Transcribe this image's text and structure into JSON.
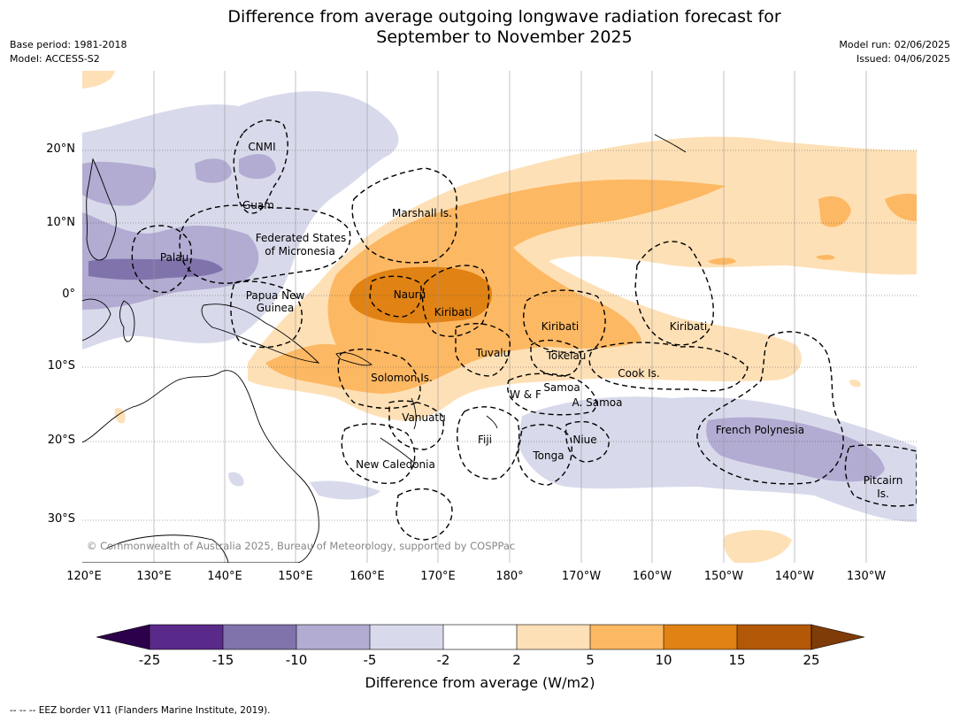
{
  "title_line1": "Difference from average outgoing longwave radiation forecast for",
  "title_line2": "September to November 2025",
  "base_period": "Base period: 1981-2018",
  "model": "Model: ACCESS-S2",
  "model_run": "Model run: 02/06/2025",
  "issued": "Issued: 04/06/2025",
  "copyright": "© Commonwealth of Australia 2025, Bureau of Meteorology, supported by COSPPac",
  "lon_labels": [
    "120°E",
    "130°E",
    "140°E",
    "150°E",
    "160°E",
    "170°E",
    "180°",
    "170°W",
    "160°W",
    "150°W",
    "140°W",
    "130°W"
  ],
  "lat_labels": [
    "20°N",
    "10°N",
    "0°",
    "10°S",
    "20°S",
    "30°S"
  ],
  "region_labels": {
    "cnmi": "CNMI",
    "guam": "Guam",
    "marshall": "Marshall Is.",
    "fsm1": "Federated States",
    "fsm2": "of Micronesia",
    "palau": "Palau",
    "png1": "Papua New",
    "png2": "Guinea",
    "nauru": "Nauru",
    "kiribati_w": "Kiribati",
    "kiribati_c": "Kiribati",
    "kiribati_e": "Kiribati",
    "tuvalu": "Tuvalu",
    "tokelau": "Tokelau",
    "cook": "Cook Is.",
    "solomon": "Solomon Is.",
    "samoa": "Samoa",
    "wf": "W & F",
    "asamoa": "A. Samoa",
    "vanuatu": "Vanuatu",
    "fiji": "Fiji",
    "niue": "Niue",
    "tonga": "Tonga",
    "frpoly": "French Polynesia",
    "newcal": "New Caledonia",
    "pitcairn1": "Pitcairn",
    "pitcairn2": "Is."
  },
  "colorbar": {
    "levels": [
      "-25",
      "-15",
      "-10",
      "-5",
      "-2",
      "2",
      "5",
      "10",
      "15",
      "25"
    ],
    "colors": [
      "#2d004b",
      "#5a2a8a",
      "#8073ac",
      "#b2abd2",
      "#d8daeb",
      "#ffffff",
      "#fee0b6",
      "#fdb863",
      "#e08214",
      "#b35806",
      "#7f3b08"
    ],
    "label": "Difference from average (W/m2)"
  },
  "footer": "--  --  -- EEZ border V11 (Flanders Marine Institute, 2019)."
}
